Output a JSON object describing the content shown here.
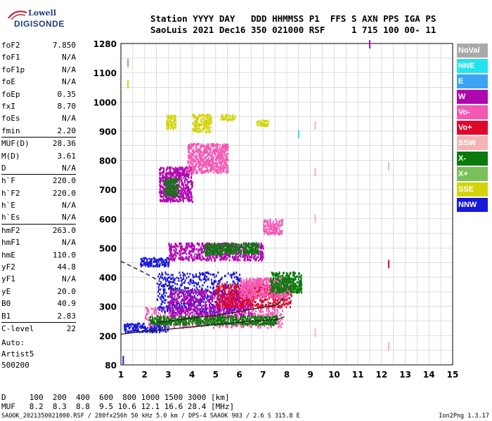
{
  "header": {
    "line1": "Station YYYY DAY   DDD HHMMSS P1  FFS S AXN PPS IGA PS",
    "line2": "SaoLuis 2021 Dec16 350 021000 RSF     1 715 100 00- 11"
  },
  "logo": {
    "top": "Lowell",
    "bottom": "DIGISONDE"
  },
  "params": [
    {
      "name": "foF2",
      "value": "7.850"
    },
    {
      "name": "foF1",
      "value": "N/A"
    },
    {
      "name": "foF1p",
      "value": "N/A"
    },
    {
      "name": "foE",
      "value": "N/A"
    },
    {
      "name": "foEp",
      "value": "0.35"
    },
    {
      "name": "fxI",
      "value": "8.70"
    },
    {
      "name": "foEs",
      "value": "N/A"
    },
    {
      "name": "fmin",
      "value": "2.20"
    },
    {
      "name": "MUF(D)",
      "value": "28.36"
    },
    {
      "name": "M(D)",
      "value": "3.61"
    },
    {
      "name": "D",
      "value": "N/A"
    },
    {
      "name": "h`F",
      "value": "220.0"
    },
    {
      "name": "h`F2",
      "value": "220.0"
    },
    {
      "name": "h`E",
      "value": "N/A"
    },
    {
      "name": "h`Es",
      "value": "N/A"
    },
    {
      "name": "hmF2",
      "value": "263.0"
    },
    {
      "name": "hmF1",
      "value": "N/A"
    },
    {
      "name": "hmE",
      "value": "110.0"
    },
    {
      "name": "yF2",
      "value": "44.8"
    },
    {
      "name": "yF1",
      "value": "N/A"
    },
    {
      "name": "yE",
      "value": "20.0"
    },
    {
      "name": "B0",
      "value": "40.9"
    },
    {
      "name": "B1",
      "value": "2.83"
    },
    {
      "name": "C-level",
      "value": "22"
    }
  ],
  "auto": {
    "line1": "Auto:",
    "line2": "Artist5",
    "line3": "500200"
  },
  "legend": [
    {
      "label": "NoVal",
      "color": "#a9a9a9"
    },
    {
      "label": "NNE",
      "color": "#22e4ee"
    },
    {
      "label": "E",
      "color": "#3ba4f4"
    },
    {
      "label": "W",
      "color": "#b008b0"
    },
    {
      "label": "Vo-",
      "color": "#f458b4"
    },
    {
      "label": "Vo+",
      "color": "#e0082c"
    },
    {
      "label": "SSW",
      "color": "#f4b4b4"
    },
    {
      "label": "X-",
      "color": "#0a7a0a"
    },
    {
      "label": "X+",
      "color": "#7ac05a"
    },
    {
      "label": "SSE",
      "color": "#d4d40c"
    },
    {
      "label": "NNW",
      "color": "#1818d8"
    }
  ],
  "chart_data": {
    "type": "scatter",
    "xlabel": "",
    "ylabel": "",
    "xlim": [
      1,
      15
    ],
    "ylim": [
      80,
      1280
    ],
    "x_ticks": [
      "1",
      "2",
      "3",
      "4",
      "5",
      "6",
      "7",
      "8",
      "9",
      "10",
      "11",
      "12",
      "13",
      "14",
      "15"
    ],
    "y_ticks": [
      "80",
      "200",
      "300",
      "400",
      "500",
      "600",
      "700",
      "800",
      "900",
      "1000",
      "1100",
      "1280"
    ],
    "grid": true,
    "clusters": [
      {
        "x": [
          1.1,
          3.0
        ],
        "y": [
          215,
          245
        ],
        "color": "#1818d8"
      },
      {
        "x": [
          2.0,
          7.8
        ],
        "y": [
          230,
          300
        ],
        "color": "#f458b4"
      },
      {
        "x": [
          2.2,
          7.6
        ],
        "y": [
          240,
          270
        ],
        "color": "#0a7a0a"
      },
      {
        "x": [
          2.5,
          6.0
        ],
        "y": [
          280,
          420
        ],
        "color": "#1818d8"
      },
      {
        "x": [
          3.0,
          6.5
        ],
        "y": [
          270,
          360
        ],
        "color": "#b008b0"
      },
      {
        "x": [
          5.0,
          8.2
        ],
        "y": [
          300,
          380
        ],
        "color": "#e0082c"
      },
      {
        "x": [
          6.0,
          8.1
        ],
        "y": [
          330,
          400
        ],
        "color": "#f458b4"
      },
      {
        "x": [
          7.3,
          8.6
        ],
        "y": [
          350,
          420
        ],
        "color": "#0a7a0a"
      },
      {
        "x": [
          1.8,
          3.0
        ],
        "y": [
          440,
          470
        ],
        "color": "#1818d8"
      },
      {
        "x": [
          3.0,
          7.0
        ],
        "y": [
          460,
          520
        ],
        "color": "#b008b0"
      },
      {
        "x": [
          4.5,
          6.8
        ],
        "y": [
          480,
          520
        ],
        "color": "#0a7a0a"
      },
      {
        "x": [
          7.0,
          7.8
        ],
        "y": [
          550,
          600
        ],
        "color": "#f458b4"
      },
      {
        "x": [
          2.6,
          4.0
        ],
        "y": [
          660,
          780
        ],
        "color": "#b008b0"
      },
      {
        "x": [
          2.8,
          3.4
        ],
        "y": [
          680,
          740
        ],
        "color": "#0a7a0a"
      },
      {
        "x": [
          3.8,
          5.5
        ],
        "y": [
          760,
          860
        ],
        "color": "#f458b4"
      },
      {
        "x": [
          4.0,
          4.8
        ],
        "y": [
          900,
          960
        ],
        "color": "#d4d40c"
      },
      {
        "x": [
          6.7,
          7.2
        ],
        "y": [
          920,
          940
        ],
        "color": "#d4d40c"
      },
      {
        "x": [
          5.2,
          5.8
        ],
        "y": [
          940,
          960
        ],
        "color": "#d4d40c"
      },
      {
        "x": [
          2.9,
          3.3
        ],
        "y": [
          910,
          960
        ],
        "color": "#d4d40c"
      }
    ],
    "isolated": [
      {
        "x": 1.1,
        "y": 100,
        "color": "#1818d8"
      },
      {
        "x": 8.5,
        "y": 890,
        "color": "#22e4ee"
      },
      {
        "x": 9.2,
        "y": 920,
        "color": "#f4b4b4"
      },
      {
        "x": 9.2,
        "y": 760,
        "color": "#f4b4b4"
      },
      {
        "x": 9.2,
        "y": 600,
        "color": "#f4b4b4"
      },
      {
        "x": 9.2,
        "y": 210,
        "color": "#f4b4b4"
      },
      {
        "x": 12.3,
        "y": 780,
        "color": "#f4b4b4"
      },
      {
        "x": 12.3,
        "y": 445,
        "color": "#e0082c"
      },
      {
        "x": 12.3,
        "y": 155,
        "color": "#f4b4b4"
      },
      {
        "x": 11.5,
        "y": 1275,
        "color": "#b008b0"
      },
      {
        "x": 1.3,
        "y": 1160,
        "color": "#7ac05a"
      },
      {
        "x": 1.3,
        "y": 1060,
        "color": "#d4d40c"
      }
    ],
    "profile_curve": {
      "x": [
        1.0,
        2.0,
        3.0,
        4.0,
        5.0,
        6.0,
        7.0,
        7.6,
        7.9
      ],
      "y": [
        205,
        215,
        222,
        230,
        238,
        246,
        252,
        255,
        265
      ]
    },
    "trace_curve": {
      "x": [
        2.5,
        3.5,
        4.5,
        5.5,
        6.5,
        7.2,
        7.6,
        7.85
      ],
      "y": [
        245,
        255,
        265,
        275,
        290,
        300,
        305,
        330
      ]
    },
    "dashed_line": {
      "x": [
        1.0,
        2.0,
        3.0,
        3.6
      ],
      "y": [
        455,
        415,
        370,
        345
      ]
    }
  },
  "bottom": {
    "d_row": "D     100  200  400  600  800 1000 1500 3000 [km]",
    "muf_row": "MUF   8.2  8.3  8.8  9.5 10.6 12.1 16.6 28.4 [MHz]",
    "footer_left": "SAOOK_2021350021000.RSF / 280fx256h 50 kHz 5.0 km / DPS-4 SAAOK 903 / 2.6 S 315.8 E",
    "footer_right": "Ion2Png 1.3.17"
  }
}
